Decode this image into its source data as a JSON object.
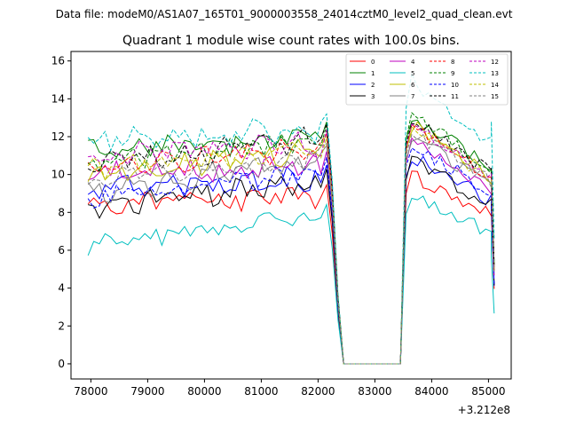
{
  "header": {
    "data_file": "Data file: modeM0/AS1A07_165T01_9000003558_24014cztM0_level2_quad_clean.evt"
  },
  "chart_data": {
    "type": "line",
    "title": "Quadrant 1 module wise count rates with 100.0s bins.",
    "xlabel": "",
    "ylabel": "",
    "x_offset_label": "+3.212e8",
    "xlim": [
      77650,
      85400
    ],
    "ylim": [
      -0.8,
      16.5
    ],
    "x_ticks": [
      78000,
      79000,
      80000,
      81000,
      82000,
      83000,
      84000,
      85000
    ],
    "x_tick_labels": [
      "78000",
      "79000",
      "80000",
      "81000",
      "82000",
      "83000",
      "84000",
      "85000"
    ],
    "y_ticks": [
      0,
      2,
      4,
      6,
      8,
      10,
      12,
      14,
      16
    ],
    "y_tick_labels": [
      "0",
      "2",
      "4",
      "6",
      "8",
      "10",
      "12",
      "14",
      "16"
    ],
    "grid": false,
    "legend_position": "top-right",
    "x_start": 77950,
    "bin": 100,
    "n_active_bins": 43,
    "gap_start": 82250,
    "gap_end": 83350,
    "ramp_down": [
      0.78,
      0.3,
      0.0
    ],
    "ramp_up": [
      0.0,
      0.9
    ],
    "end_points": [
      85050,
      85100
    ],
    "series": [
      {
        "name": "0",
        "level_a": 8.6,
        "level_b": 8.8,
        "peak_b": 10.0,
        "tail": 0.72,
        "color": "#ff0000",
        "dashed": false
      },
      {
        "name": "1",
        "level_a": 11.2,
        "level_b": 12.0,
        "peak_b": 13.2,
        "tail": 0.72,
        "color": "#008000",
        "dashed": false
      },
      {
        "name": "2",
        "level_a": 9.2,
        "level_b": 9.8,
        "peak_b": 11.0,
        "tail": 0.68,
        "color": "#0000ff",
        "dashed": false
      },
      {
        "name": "3",
        "level_a": 8.3,
        "level_b": 9.6,
        "peak_b": 10.8,
        "tail": 0.7,
        "color": "#000000",
        "dashed": false
      },
      {
        "name": "4",
        "level_a": 10.0,
        "level_b": 10.5,
        "peak_b": 11.8,
        "tail": 0.72,
        "color": "#bf00bf",
        "dashed": false
      },
      {
        "name": "5",
        "level_a": 6.4,
        "level_b": 7.8,
        "peak_b": 8.8,
        "tail": 0.55,
        "color": "#00bfbf",
        "dashed": false
      },
      {
        "name": "6",
        "level_a": 9.9,
        "level_b": 11.4,
        "peak_b": 12.6,
        "tail": 0.72,
        "color": "#bfbf00",
        "dashed": false
      },
      {
        "name": "7",
        "level_a": 9.0,
        "level_b": 10.8,
        "peak_b": 12.0,
        "tail": 0.75,
        "color": "#808080",
        "dashed": false
      },
      {
        "name": "8",
        "level_a": 10.4,
        "level_b": 11.4,
        "peak_b": 12.6,
        "tail": 0.72,
        "color": "#ff0000",
        "dashed": true
      },
      {
        "name": "9",
        "level_a": 10.8,
        "level_b": 11.8,
        "peak_b": 13.2,
        "tail": 0.72,
        "color": "#008000",
        "dashed": true
      },
      {
        "name": "10",
        "level_a": 8.7,
        "level_b": 10.2,
        "peak_b": 11.6,
        "tail": 0.66,
        "color": "#0000ff",
        "dashed": true
      },
      {
        "name": "11",
        "level_a": 10.6,
        "level_b": 11.9,
        "peak_b": 12.9,
        "tail": 0.74,
        "color": "#000000",
        "dashed": true
      },
      {
        "name": "12",
        "level_a": 10.9,
        "level_b": 11.6,
        "peak_b": 12.6,
        "tail": 0.72,
        "color": "#bf00bf",
        "dashed": true
      },
      {
        "name": "13",
        "level_a": 11.8,
        "level_b": 12.4,
        "peak_b": 15.0,
        "tail": 0.8,
        "color": "#00bfbf",
        "dashed": true
      },
      {
        "name": "14",
        "level_a": 10.3,
        "level_b": 11.2,
        "peak_b": 12.4,
        "tail": 0.72,
        "color": "#bfbf00",
        "dashed": true
      },
      {
        "name": "15",
        "level_a": 9.8,
        "level_b": 10.9,
        "peak_b": 12.3,
        "tail": 0.72,
        "color": "#808080",
        "dashed": true
      }
    ]
  }
}
